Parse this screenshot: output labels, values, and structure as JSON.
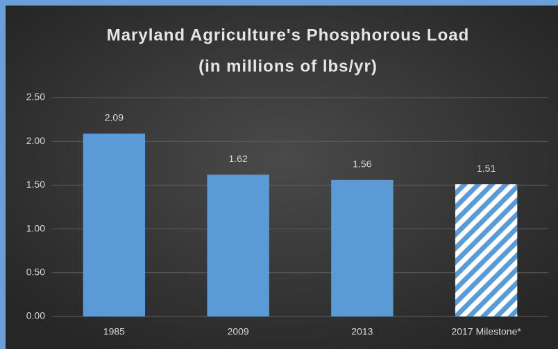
{
  "chart_data": {
    "type": "bar",
    "title": "Maryland Agriculture's Phosphorous Load",
    "subtitle": "(in millions of lbs/yr)",
    "categories": [
      "1985",
      "2009",
      "2013",
      "2017 Milestone*"
    ],
    "values": [
      2.09,
      1.62,
      1.56,
      1.51
    ],
    "hatched": [
      false,
      false,
      false,
      true
    ],
    "color": "#5b9bd5",
    "ylim": [
      0,
      2.5
    ],
    "yticks": [
      {
        "value": 0,
        "label": "0.00"
      },
      {
        "value": 0.5,
        "label": "0.50"
      },
      {
        "value": 1,
        "label": "1.00"
      },
      {
        "value": 1.5,
        "label": "1.50"
      },
      {
        "value": 2,
        "label": "2.00"
      },
      {
        "value": 2.5,
        "label": "2.50"
      }
    ],
    "grid": true
  }
}
